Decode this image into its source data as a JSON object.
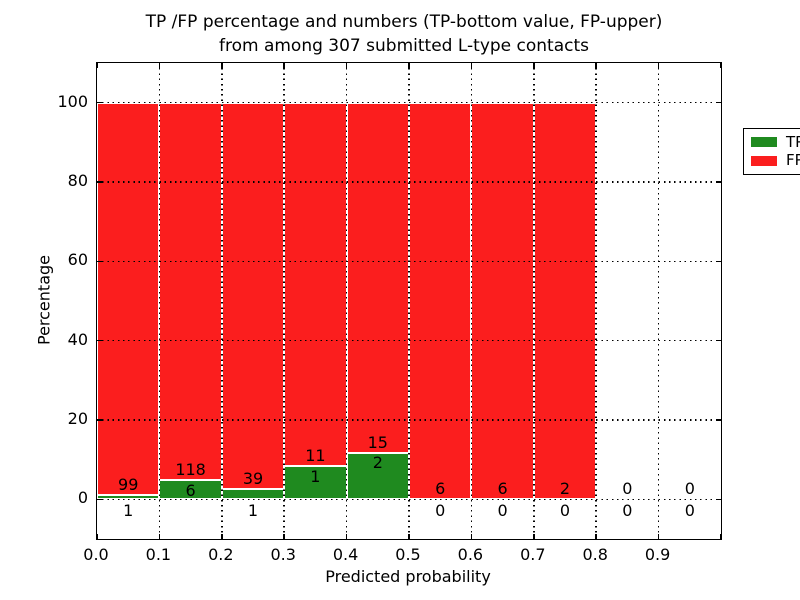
{
  "figure": {
    "title_line1": "TP /FP percentage and numbers (TP-bottom value, FP-upper)",
    "title_line2": "from among 307 submitted L-type contacts",
    "xlabel": "Predicted probability",
    "ylabel": "Percentage"
  },
  "legend": {
    "position": "upper-right",
    "items": [
      {
        "label": "TP",
        "color": "#1f8a1f"
      },
      {
        "label": "FP",
        "color": "#fb1e1e"
      }
    ]
  },
  "colors": {
    "tp_green": "#1f8a1f",
    "fp_red": "#fb1e1e",
    "bar_edge": "#ffffff",
    "grid": "#000000",
    "background": "#ffffff",
    "text": "#000000"
  },
  "chart_data": {
    "type": "bar",
    "stacked": true,
    "units": "percent of bin total; annotations are raw counts (TP bottom, FP upper)",
    "title": "TP /FP percentage and numbers (TP-bottom value, FP-upper)\nfrom among 307 submitted L-type contacts",
    "xlabel": "Predicted probability",
    "ylabel": "Percentage",
    "xlim": [
      0.0,
      1.0
    ],
    "ylim": [
      -10,
      110
    ],
    "grid": "dotted",
    "legend_position": "upper right",
    "total_submitted_contacts": 307,
    "x_tick_labels": [
      "0.0",
      "0.1",
      "0.2",
      "0.3",
      "0.4",
      "0.5",
      "0.6",
      "0.7",
      "0.8",
      "0.9"
    ],
    "x_tick_values": [
      0.0,
      0.1,
      0.2,
      0.3,
      0.4,
      0.5,
      0.6,
      0.7,
      0.8,
      0.9
    ],
    "y_tick_values": [
      0,
      20,
      40,
      60,
      80,
      100
    ],
    "bin_width": 0.1,
    "categories": [
      "0.0-0.1",
      "0.1-0.2",
      "0.2-0.3",
      "0.3-0.4",
      "0.4-0.5",
      "0.5-0.6",
      "0.6-0.7",
      "0.7-0.8",
      "0.8-0.9",
      "0.9-1.0"
    ],
    "series": [
      {
        "name": "TP",
        "counts": [
          1,
          6,
          1,
          1,
          2,
          0,
          0,
          0,
          0,
          0
        ]
      },
      {
        "name": "FP",
        "counts": [
          99,
          118,
          39,
          11,
          15,
          6,
          6,
          2,
          0,
          0
        ]
      }
    ],
    "tp_percent_of_bin": [
      1.0,
      4.8,
      2.5,
      8.3,
      11.8,
      0.0,
      0.0,
      0.0,
      null,
      null
    ],
    "fp_percent_of_bin": [
      99.0,
      95.2,
      97.5,
      91.7,
      88.2,
      100.0,
      100.0,
      100.0,
      null,
      null
    ]
  }
}
